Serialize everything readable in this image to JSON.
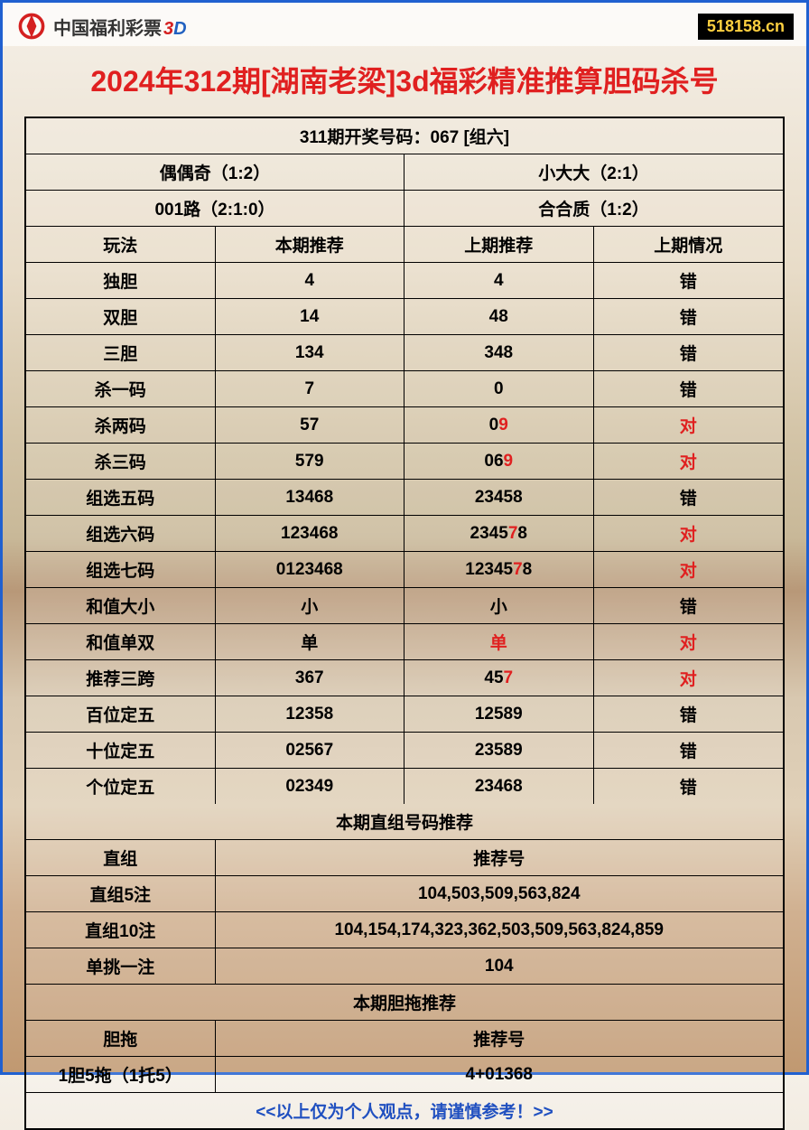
{
  "header": {
    "brand_text": "中国福利彩票",
    "three": "3",
    "d": "D",
    "site_badge": "518158.cn"
  },
  "title": "2024年312期[湖南老梁]3d福彩精准推算胆码杀号",
  "colors": {
    "title_red": "#e02020",
    "link_blue": "#2050c0",
    "border_blue": "#2060d0",
    "black": "#000000",
    "badge_bg": "#000000",
    "badge_fg": "#ffd040"
  },
  "top_info": {
    "draw_line": "311期开奖号码：067 [组六]",
    "r1c1": "偶偶奇（1:2）",
    "r1c2": "小大大（2:1）",
    "r2c1": "001路（2:1:0）",
    "r2c2": "合合质（1:2）"
  },
  "headers": {
    "c1": "玩法",
    "c2": "本期推荐",
    "c3": "上期推荐",
    "c4": "上期情况"
  },
  "rows": [
    {
      "name": "独胆",
      "cur": "4",
      "prev": [
        {
          "t": "4",
          "c": "k"
        }
      ],
      "res": "错",
      "res_c": "k"
    },
    {
      "name": "双胆",
      "cur": "14",
      "prev": [
        {
          "t": "48",
          "c": "k"
        }
      ],
      "res": "错",
      "res_c": "k"
    },
    {
      "name": "三胆",
      "cur": "134",
      "prev": [
        {
          "t": "348",
          "c": "k"
        }
      ],
      "res": "错",
      "res_c": "k"
    },
    {
      "name": "杀一码",
      "cur": "7",
      "prev": [
        {
          "t": "0",
          "c": "k"
        }
      ],
      "res": "错",
      "res_c": "k"
    },
    {
      "name": "杀两码",
      "cur": "57",
      "prev": [
        {
          "t": "0",
          "c": "k"
        },
        {
          "t": "9",
          "c": "r"
        }
      ],
      "res": "对",
      "res_c": "r"
    },
    {
      "name": "杀三码",
      "cur": "579",
      "prev": [
        {
          "t": "0",
          "c": "k"
        },
        {
          "t": "6",
          "c": "k"
        },
        {
          "t": "9",
          "c": "r"
        }
      ],
      "res": "对",
      "res_c": "r"
    },
    {
      "name": "组选五码",
      "cur": "13468",
      "prev": [
        {
          "t": "23458",
          "c": "k"
        }
      ],
      "res": "错",
      "res_c": "k"
    },
    {
      "name": "组选六码",
      "cur": "123468",
      "prev": [
        {
          "t": "2345",
          "c": "k"
        },
        {
          "t": "7",
          "c": "r"
        },
        {
          "t": "8",
          "c": "k"
        }
      ],
      "res": "对",
      "res_c": "r"
    },
    {
      "name": "组选七码",
      "cur": "0123468",
      "prev": [
        {
          "t": "12345",
          "c": "k"
        },
        {
          "t": "7",
          "c": "r"
        },
        {
          "t": "8",
          "c": "k"
        }
      ],
      "res": "对",
      "res_c": "r"
    },
    {
      "name": "和值大小",
      "cur": "小",
      "prev": [
        {
          "t": "小",
          "c": "k"
        }
      ],
      "res": "错",
      "res_c": "k"
    },
    {
      "name": "和值单双",
      "cur": "单",
      "prev": [
        {
          "t": "单",
          "c": "r"
        }
      ],
      "res": "对",
      "res_c": "r"
    },
    {
      "name": "推荐三跨",
      "cur": "367",
      "prev": [
        {
          "t": "45",
          "c": "k"
        },
        {
          "t": "7",
          "c": "r"
        }
      ],
      "res": "对",
      "res_c": "r"
    },
    {
      "name": "百位定五",
      "cur": "12358",
      "prev": [
        {
          "t": "12589",
          "c": "k"
        }
      ],
      "res": "错",
      "res_c": "k"
    },
    {
      "name": "十位定五",
      "cur": "02567",
      "prev": [
        {
          "t": "23589",
          "c": "k"
        }
      ],
      "res": "错",
      "res_c": "k"
    },
    {
      "name": "个位定五",
      "cur": "02349",
      "prev": [
        {
          "t": "23468",
          "c": "k"
        }
      ],
      "res": "错",
      "res_c": "k"
    }
  ],
  "zhizu": {
    "title": "本期直组号码推荐",
    "head_left": "直组",
    "head_right": "推荐号",
    "r1l": "直组5注",
    "r1r": "104,503,509,563,824",
    "r2l": "直组10注",
    "r2r": "104,154,174,323,362,503,509,563,824,859",
    "r3l": "单挑一注",
    "r3r": "104"
  },
  "dantuo": {
    "title": "本期胆拖推荐",
    "head_left": "胆拖",
    "head_right": "推荐号",
    "r1l": "1胆5拖（1托5）",
    "r1r": "4+01368"
  },
  "footer": "<<以上仅为个人观点，请谨慎参考！>>"
}
